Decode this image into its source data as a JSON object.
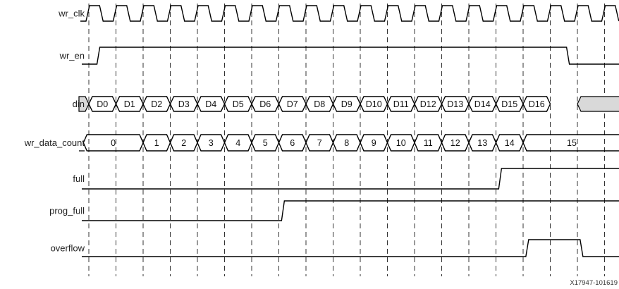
{
  "figure_id": "X17947-101619",
  "colors": {
    "line": "#000000",
    "guide": "#333333",
    "shade": "#d9d9d9"
  },
  "signals": [
    {
      "id": "wr_clk",
      "label": "wr_clk",
      "kind": "clock"
    },
    {
      "id": "wr_en",
      "label": "wr_en",
      "kind": "bit",
      "initial": 0,
      "edges": [
        {
          "t": 0.3,
          "v": 1
        },
        {
          "t": 17.6,
          "v": 0
        }
      ]
    },
    {
      "id": "din",
      "label": "din",
      "kind": "bus",
      "shaded_before": 0,
      "shaded_after": 18,
      "segments": [
        {
          "t0": 0,
          "t1": 1,
          "text": "D0"
        },
        {
          "t0": 1,
          "t1": 2,
          "text": "D1"
        },
        {
          "t0": 2,
          "t1": 3,
          "text": "D2"
        },
        {
          "t0": 3,
          "t1": 4,
          "text": "D3"
        },
        {
          "t0": 4,
          "t1": 5,
          "text": "D4"
        },
        {
          "t0": 5,
          "t1": 6,
          "text": "D5"
        },
        {
          "t0": 6,
          "t1": 7,
          "text": "D6"
        },
        {
          "t0": 7,
          "t1": 8,
          "text": "D7"
        },
        {
          "t0": 8,
          "t1": 9,
          "text": "D8"
        },
        {
          "t0": 9,
          "t1": 10,
          "text": "D9"
        },
        {
          "t0": 10,
          "t1": 11,
          "text": "D10"
        },
        {
          "t0": 11,
          "t1": 12,
          "text": "D11"
        },
        {
          "t0": 12,
          "t1": 13,
          "text": "D12"
        },
        {
          "t0": 13,
          "t1": 14,
          "text": "D13"
        },
        {
          "t0": 14,
          "t1": 15,
          "text": "D14"
        },
        {
          "t0": 15,
          "t1": 16,
          "text": "D15"
        },
        {
          "t0": 16,
          "t1": 17,
          "text": "D16"
        }
      ]
    },
    {
      "id": "wr_data_count",
      "label": "wr_data_count",
      "kind": "bus",
      "segments": [
        {
          "t0": -0.2,
          "t1": 2,
          "text": "0"
        },
        {
          "t0": 2,
          "t1": 3,
          "text": "1"
        },
        {
          "t0": 3,
          "t1": 4,
          "text": "2"
        },
        {
          "t0": 4,
          "t1": 5,
          "text": "3"
        },
        {
          "t0": 5,
          "t1": 6,
          "text": "4"
        },
        {
          "t0": 6,
          "t1": 7,
          "text": "5"
        },
        {
          "t0": 7,
          "t1": 8,
          "text": "6"
        },
        {
          "t0": 8,
          "t1": 9,
          "text": "7"
        },
        {
          "t0": 9,
          "t1": 10,
          "text": "8"
        },
        {
          "t0": 10,
          "t1": 11,
          "text": "9"
        },
        {
          "t0": 11,
          "t1": 12,
          "text": "10"
        },
        {
          "t0": 12,
          "t1": 13,
          "text": "11"
        },
        {
          "t0": 13,
          "t1": 14,
          "text": "12"
        },
        {
          "t0": 14,
          "t1": 15,
          "text": "13"
        },
        {
          "t0": 15,
          "t1": 16,
          "text": "14"
        },
        {
          "t0": 16,
          "t1": 20.5,
          "text": "15"
        }
      ]
    },
    {
      "id": "full",
      "label": "full",
      "kind": "bit",
      "initial": 0,
      "edges": [
        {
          "t": 15.1,
          "v": 1
        }
      ]
    },
    {
      "id": "prog_full",
      "label": "prog_full",
      "kind": "bit",
      "initial": 0,
      "edges": [
        {
          "t": 7.1,
          "v": 1
        }
      ]
    },
    {
      "id": "overflow",
      "label": "overflow",
      "kind": "bit",
      "initial": 0,
      "edges": [
        {
          "t": 16.1,
          "v": 1
        },
        {
          "t": 18.1,
          "v": 0
        }
      ]
    }
  ]
}
